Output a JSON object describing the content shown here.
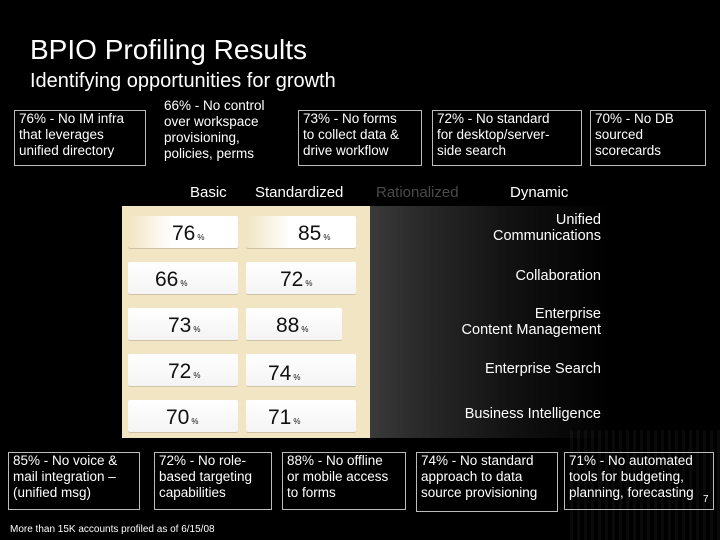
{
  "title": "BPIO Profiling Results",
  "subtitle": "Identifying opportunities for growth",
  "callouts_top": [
    "76% - No IM infra\nthat leverages\nunified directory",
    "66% - No control\nover workspace\nprovisioning,\npolicies, perms",
    "73% - No forms\nto collect data &\ndrive workflow",
    "72% - No standard\nfor desktop/server-\nside search",
    "70% - No DB\nsourced\nscorecards"
  ],
  "callouts_bottom": [
    "85% - No voice &\nmail integration –\n(unified msg)",
    "72% - No role-\nbased targeting\ncapabilities",
    "88% - No offline\nor mobile access\nto forms",
    "74% - No standard\napproach to data\nsource provisioning",
    "71% - No automated\ntools for budgeting,\nplanning, forecasting"
  ],
  "maturity_headers": [
    "Basic",
    "Standardized",
    "Rationalized",
    "Dynamic"
  ],
  "rows": [
    {
      "basic": "76",
      "standardized": "85",
      "capability": "Unified\nCommunications"
    },
    {
      "basic": "66",
      "standardized": "72",
      "capability": "Collaboration"
    },
    {
      "basic": "73",
      "standardized": "88",
      "capability": "Enterprise\nContent Management"
    },
    {
      "basic": "72",
      "standardized": "74",
      "capability": "Enterprise Search"
    },
    {
      "basic": "70",
      "standardized": "71",
      "capability": "Business Intelligence"
    }
  ],
  "pct_sign": "%",
  "footnote": "More than 15K accounts profiled as of 6/15/08",
  "page_number": "7",
  "colors": {
    "background": "#000000",
    "grid": "#f2e5c4",
    "cell": "#ffffff",
    "rationalized_header": "#4a4a4a"
  }
}
